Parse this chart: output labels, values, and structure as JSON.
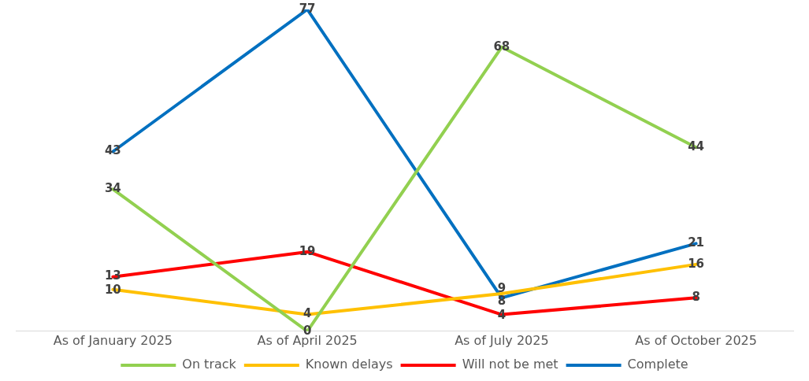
{
  "chart_data": {
    "type": "line",
    "categories": [
      "As of January 2025",
      "As of April 2025",
      "As of July 2025",
      "As of October 2025"
    ],
    "series": [
      {
        "name": "On track",
        "color": "#92d050",
        "values": [
          34,
          0,
          68,
          44
        ]
      },
      {
        "name": "Known delays",
        "color": "#ffc000",
        "values": [
          10,
          4,
          9,
          16
        ]
      },
      {
        "name": "Will not be met",
        "color": "#ff0000",
        "values": [
          13,
          19,
          4,
          8
        ]
      },
      {
        "name": "Complete",
        "color": "#0070c0",
        "values": [
          43,
          77,
          8,
          21
        ]
      }
    ],
    "data_labels": true,
    "legend": "bottom",
    "grid": false,
    "marker": "none",
    "line_style": "solid",
    "tick_labels": "x"
  }
}
